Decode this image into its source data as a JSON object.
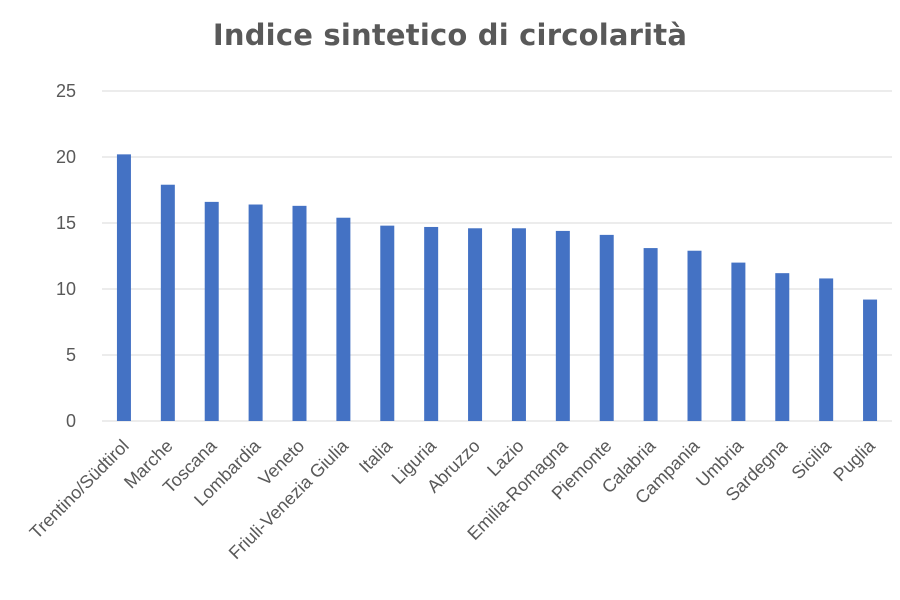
{
  "chart_data": {
    "type": "bar",
    "title": "Indice sintetico di circolarità",
    "xlabel": "",
    "ylabel": "",
    "ylim": [
      0,
      25
    ],
    "yticks": [
      0,
      5,
      10,
      15,
      20,
      25
    ],
    "grid": true,
    "legend": "none",
    "bar_color": "#4472c4",
    "categories": [
      "Trentino/Südtirol",
      "Marche",
      "Toscana",
      "Lombardia",
      "Veneto",
      "Friuli-Venezia Giulia",
      "Italia",
      "Liguria",
      "Abruzzo",
      "Lazio",
      "Emilia-Romagna",
      "Piemonte",
      "Calabria",
      "Campania",
      "Umbria",
      "Sardegna",
      "Sicilia",
      "Puglia"
    ],
    "values": [
      20.2,
      17.9,
      16.6,
      16.4,
      16.3,
      15.4,
      14.8,
      14.7,
      14.6,
      14.6,
      14.4,
      14.1,
      13.1,
      12.9,
      12.0,
      11.2,
      10.8,
      9.2
    ]
  }
}
